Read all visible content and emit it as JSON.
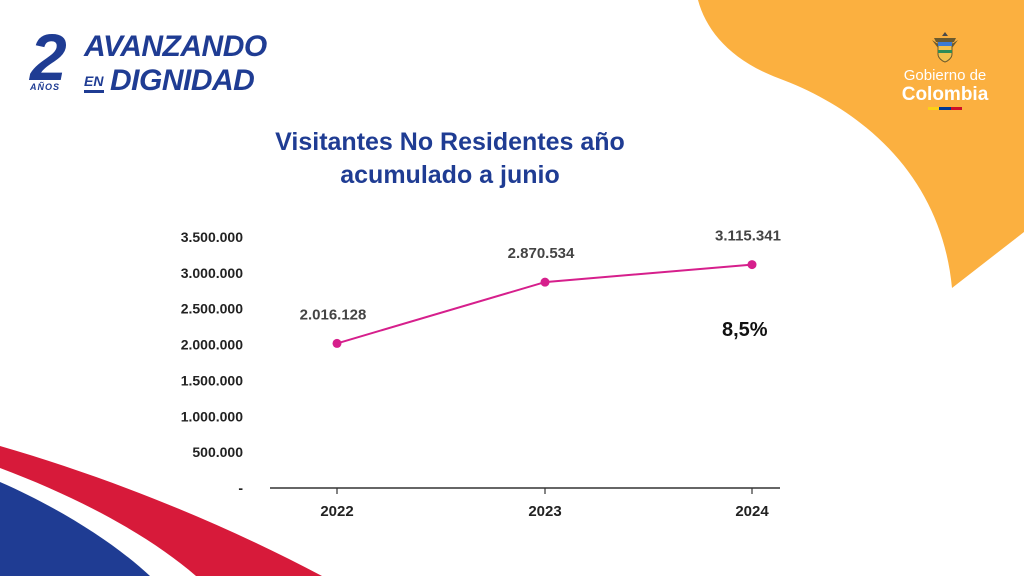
{
  "branding": {
    "campaign_number": "2",
    "campaign_years": "AÑOS",
    "campaign_word1": "AVANZANDO",
    "campaign_word2": "EN",
    "campaign_word3": "DIGNIDAD",
    "gov_line1": "Gobierno de",
    "gov_line2": "Colombia",
    "seal_icon": "colombia-coat-of-arms-icon"
  },
  "colors": {
    "title": "#1f3c93",
    "line": "#d61f8c",
    "accent_orange": "#fbb040",
    "accent_red": "#d71a3a",
    "accent_blue": "#1f3c93"
  },
  "annotation": "8,5%",
  "chart_data": {
    "type": "line",
    "title_lines": [
      "Visitantes No Residentes año",
      "acumulado a junio"
    ],
    "categories": [
      "2022",
      "2023",
      "2024"
    ],
    "values": [
      2016128,
      2870534,
      3115341
    ],
    "data_labels": [
      "2.016.128",
      "2.870.534",
      "3.115.341"
    ],
    "y_ticks": [
      0,
      500000,
      1000000,
      1500000,
      2000000,
      2500000,
      3000000,
      3500000
    ],
    "y_tick_labels": [
      "-",
      "500.000",
      "1.000.000",
      "1.500.000",
      "2.000.000",
      "2.500.000",
      "3.000.000",
      "3.500.000"
    ],
    "ylim": [
      0,
      3500000
    ],
    "grid": false,
    "legend": "none"
  }
}
